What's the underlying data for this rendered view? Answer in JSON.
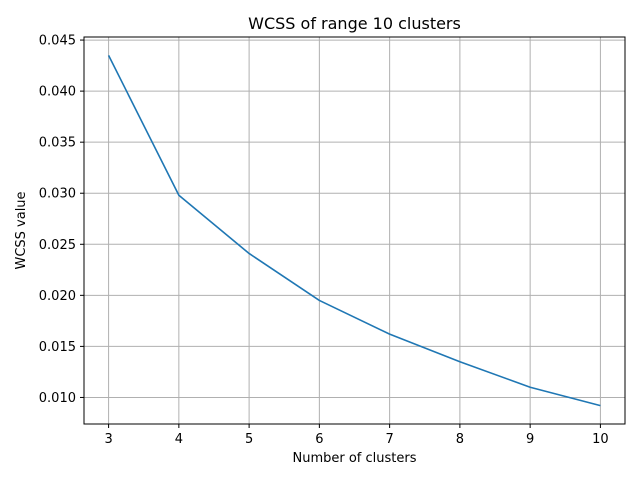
{
  "chart_data": {
    "type": "line",
    "title": "WCSS of range 10 clusters",
    "xlabel": "Number of clusters",
    "ylabel": "WCSS value",
    "x": [
      3,
      4,
      5,
      6,
      7,
      8,
      9,
      10
    ],
    "series": [
      {
        "values": [
          0.0435,
          0.0298,
          0.0241,
          0.0195,
          0.0162,
          0.0135,
          0.011,
          0.0092
        ],
        "color": "#1f77b4"
      }
    ],
    "xlim": [
      2.65,
      10.35
    ],
    "ylim": [
      0.0074,
      0.0453
    ],
    "xticks": [
      3,
      4,
      5,
      6,
      7,
      8,
      9,
      10
    ],
    "xtick_labels": [
      "3",
      "4",
      "5",
      "6",
      "7",
      "8",
      "9",
      "10"
    ],
    "yticks": [
      0.01,
      0.015,
      0.02,
      0.025,
      0.03,
      0.035,
      0.04,
      0.045
    ],
    "ytick_labels": [
      "0.010",
      "0.015",
      "0.020",
      "0.025",
      "0.030",
      "0.035",
      "0.040",
      "0.045"
    ],
    "grid": true,
    "grid_color": "#b0b0b0",
    "legend": false
  }
}
